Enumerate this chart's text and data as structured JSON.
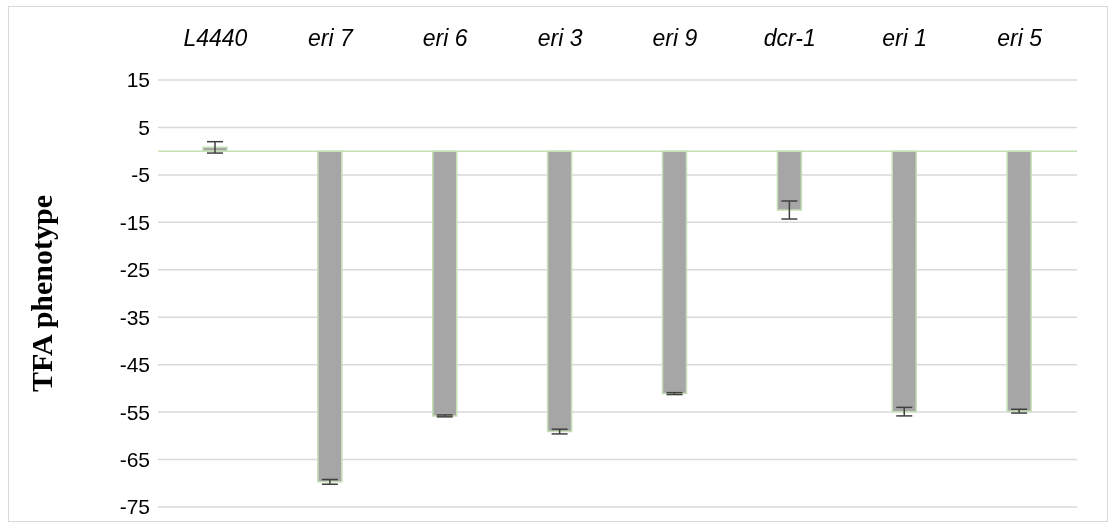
{
  "chart_data": {
    "type": "bar",
    "ylabel": "TFA phenotype",
    "categories": [
      "L4440",
      "eri 7",
      "eri 6",
      "eri 3",
      "eri 9",
      "dcr-1",
      "eri 1",
      "eri 5"
    ],
    "values": [
      0.8,
      -69.7,
      -55.8,
      -59.1,
      -51.1,
      -12.4,
      -54.9,
      -54.8
    ],
    "errors": [
      1.2,
      0.5,
      0.2,
      0.5,
      0.2,
      1.9,
      0.9,
      0.4
    ],
    "color": "#a6a6a6",
    "ylim": [
      -75,
      15
    ],
    "yticks": [
      -75,
      -65,
      -55,
      -45,
      -35,
      -25,
      -15,
      -5,
      5,
      15
    ],
    "grid": "y",
    "ref_lines": [
      {
        "axis": "y",
        "value": 0,
        "color": "#c5e0b4"
      }
    ]
  }
}
